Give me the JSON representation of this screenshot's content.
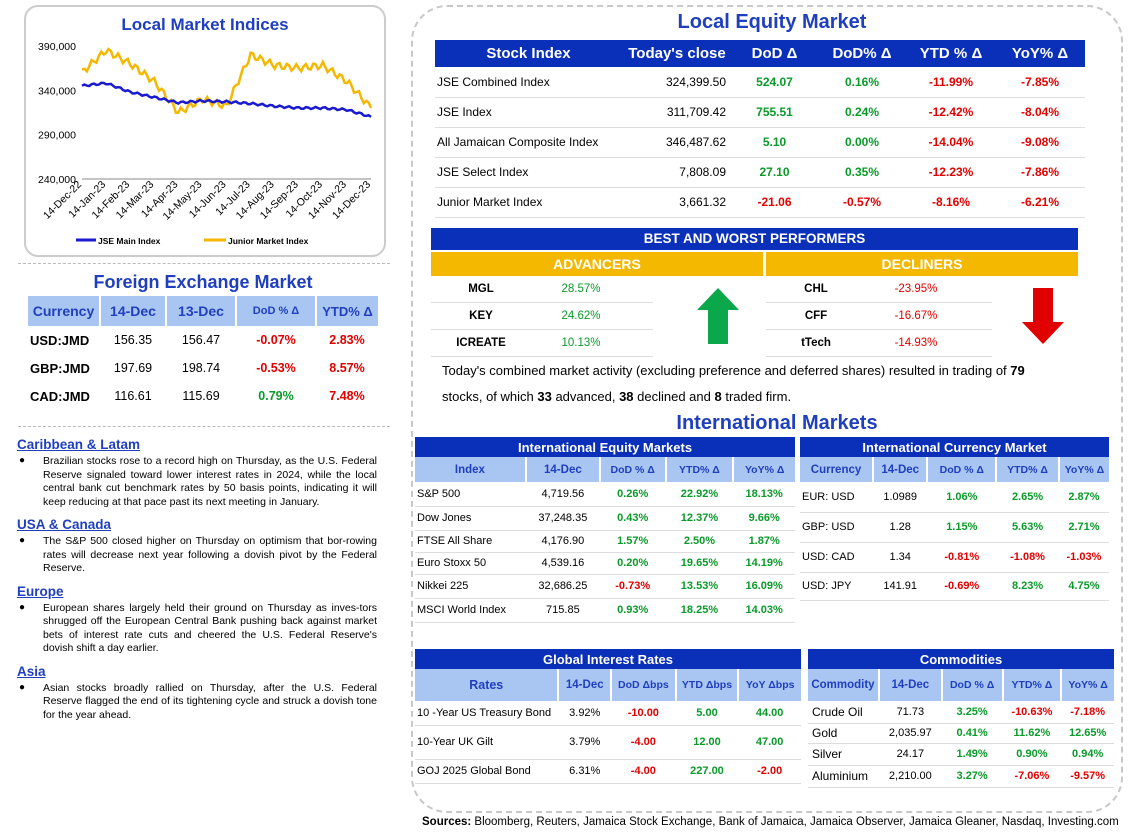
{
  "chart": {
    "title": "Local Market Indices",
    "yticks": [
      "390,000",
      "340,000",
      "290,000",
      "240,000"
    ],
    "xticks": [
      "14-Dec-22",
      "14-Jan-23",
      "14-Feb-23",
      "14-Mar-23",
      "14-Apr-23",
      "14-May-23",
      "14-Jun-23",
      "14-Jul-23",
      "14-Aug-23",
      "14-Sep-23",
      "14-Oct-23",
      "14-Nov-23",
      "14-Dec-23"
    ],
    "legend_main": "JSE Main Index",
    "legend_junior": "Junior Market Index",
    "colors": {
      "main": "#1a1ad0",
      "junior": "#F5B800"
    }
  },
  "chart_data": {
    "type": "line",
    "title": "Local Market Indices",
    "x": [
      "14-Dec-22",
      "14-Jan-23",
      "14-Feb-23",
      "14-Mar-23",
      "14-Apr-23",
      "14-May-23",
      "14-Jun-23",
      "14-Jul-23",
      "14-Aug-23",
      "14-Sep-23",
      "14-Oct-23",
      "14-Nov-23",
      "14-Dec-23"
    ],
    "ylim": [
      240000,
      400000
    ],
    "series": [
      {
        "name": "JSE Main Index",
        "values": [
          345000,
          348000,
          338000,
          332000,
          326000,
          328000,
          327000,
          325000,
          322000,
          320000,
          320000,
          318000,
          310000
        ]
      },
      {
        "name": "Junior Market Index",
        "values": [
          360000,
          385000,
          370000,
          350000,
          315000,
          330000,
          322000,
          380000,
          368000,
          365000,
          368000,
          350000,
          320000
        ]
      }
    ],
    "grid": false,
    "legend": "bottom"
  },
  "fx": {
    "title": "Foreign Exchange Market",
    "headers": [
      "Currency",
      "14-Dec",
      "13-Dec",
      "DoD % Δ",
      "YTD% Δ"
    ],
    "rows": [
      {
        "cur": "USD:JMD",
        "d1": "156.35",
        "d2": "156.47",
        "dod": "-0.07%",
        "ytd": "2.83%"
      },
      {
        "cur": "GBP:JMD",
        "d1": "197.69",
        "d2": "198.74",
        "dod": "-0.53%",
        "ytd": "8.57%"
      },
      {
        "cur": "CAD:JMD",
        "d1": "116.61",
        "d2": "115.69",
        "dod": "0.79%",
        "ytd": "7.48%"
      }
    ]
  },
  "news": [
    {
      "heading": "Caribbean & Latam",
      "text": "Brazilian stocks rose to a record high on Thursday, as the U.S. Federal Reserve signaled toward lower interest rates in 2024, while the local central bank cut benchmark rates by 50 basis points, indicating it will keep reducing at that pace past its next meeting in January."
    },
    {
      "heading": "USA & Canada",
      "text": "The S&P 500 closed higher on Thursday on optimism that bor-rowing rates will decrease next year following a dovish pivot by the Federal Reserve."
    },
    {
      "heading": "Europe",
      "text": "European shares largely held their ground on Thursday as inves-tors shrugged off the European Central Bank pushing back against market bets of interest rate cuts and cheered the U.S. Federal Reserve's dovish shift a day earlier."
    },
    {
      "heading": "Asia",
      "text": "Asian stocks broadly rallied on Thursday, after the U.S. Federal Reserve flagged the end of its tightening cycle and struck a dovish tone for the year ahead."
    }
  ],
  "equity": {
    "title": "Local Equity Market",
    "headers": [
      "Stock Index",
      "Today's close",
      "DoD  Δ",
      "DoD% Δ",
      "YTD % Δ",
      "YoY% Δ"
    ],
    "rows": [
      {
        "name": "JSE Combined Index",
        "close": "324,399.50",
        "dod": "524.07",
        "dodp": "0.16%",
        "ytd": "-11.99%",
        "yoy": "-7.85%"
      },
      {
        "name": "JSE Index",
        "close": "311,709.42",
        "dod": "755.51",
        "dodp": "0.24%",
        "ytd": "-12.42%",
        "yoy": "-8.04%"
      },
      {
        "name": "All Jamaican Composite Index",
        "close": "346,487.62",
        "dod": "5.10",
        "dodp": "0.00%",
        "ytd": "-14.04%",
        "yoy": "-9.08%"
      },
      {
        "name": "JSE Select Index",
        "close": "7,808.09",
        "dod": "27.10",
        "dodp": "0.35%",
        "ytd": "-12.23%",
        "yoy": "-7.86%"
      },
      {
        "name": "Junior Market Index",
        "close": "3,661.32",
        "dod": "-21.06",
        "dodp": "-0.57%",
        "ytd": "-8.16%",
        "yoy": "-6.21%"
      }
    ]
  },
  "performers": {
    "title": "BEST AND WORST PERFORMERS",
    "adv_label": "ADVANCERS",
    "dec_label": "DECLINERS",
    "advancers": [
      {
        "sym": "MGL",
        "pct": "28.57%"
      },
      {
        "sym": "KEY",
        "pct": "24.62%"
      },
      {
        "sym": "ICREATE",
        "pct": "10.13%"
      }
    ],
    "decliners": [
      {
        "sym": "CHL",
        "pct": "-23.95%"
      },
      {
        "sym": "CFF",
        "pct": "-16.67%"
      },
      {
        "sym": "tTech",
        "pct": "-14.93%"
      }
    ]
  },
  "summary": {
    "part1": "Today's combined market activity (excluding preference and deferred shares) resulted in trading of ",
    "n_total": "79",
    "part2": "stocks, of which ",
    "n_adv": "33",
    "part3": " advanced, ",
    "n_dec": "38",
    "part4": " declined and ",
    "n_firm": "8",
    "part5": " traded firm."
  },
  "intl": {
    "title": "International Markets",
    "equity_title": "International Equity Markets",
    "equity_headers": [
      "Index",
      "14-Dec",
      "DoD % Δ",
      "YTD% Δ",
      "YoY% Δ"
    ],
    "equity_rows": [
      {
        "name": "S&P 500",
        "v": "4,719.56",
        "dod": "0.26%",
        "ytd": "22.92%",
        "yoy": "18.13%"
      },
      {
        "name": "Dow Jones",
        "v": "37,248.35",
        "dod": "0.43%",
        "ytd": "12.37%",
        "yoy": "9.66%"
      },
      {
        "name": "FTSE All Share",
        "v": "4,176.90",
        "dod": "1.57%",
        "ytd": "2.50%",
        "yoy": "1.87%"
      },
      {
        "name": "Euro Stoxx 50",
        "v": "4,539.16",
        "dod": "0.20%",
        "ytd": "19.65%",
        "yoy": "14.19%"
      },
      {
        "name": "Nikkei 225",
        "v": "32,686.25",
        "dod": "-0.73%",
        "ytd": "13.53%",
        "yoy": "16.09%"
      },
      {
        "name": "MSCI World Index",
        "v": "715.85",
        "dod": "0.93%",
        "ytd": "18.25%",
        "yoy": "14.03%"
      }
    ],
    "currency_title": "International Currency Market",
    "currency_headers": [
      "Currency",
      "14-Dec",
      "DoD % Δ",
      "YTD% Δ",
      "YoY% Δ"
    ],
    "currency_rows": [
      {
        "name": "EUR: USD",
        "v": "1.0989",
        "dod": "1.06%",
        "ytd": "2.65%",
        "yoy": "2.87%"
      },
      {
        "name": "GBP: USD",
        "v": "1.28",
        "dod": "1.15%",
        "ytd": "5.63%",
        "yoy": "2.71%"
      },
      {
        "name": "USD: CAD",
        "v": "1.34",
        "dod": "-0.81%",
        "ytd": "-1.08%",
        "yoy": "-1.03%"
      },
      {
        "name": "USD: JPY",
        "v": "141.91",
        "dod": "-0.69%",
        "ytd": "8.23%",
        "yoy": "4.75%"
      }
    ],
    "rates_title": "Global Interest Rates",
    "rates_headers": [
      "Rates",
      "14-Dec",
      "DoD Δbps",
      "YTD Δbps",
      "YoY Δbps"
    ],
    "rates_rows": [
      {
        "name": "10 -Year US Treasury Bond",
        "v": "3.92%",
        "dod": "-10.00",
        "ytd": "5.00",
        "yoy": "44.00"
      },
      {
        "name": "10-Year UK Gilt",
        "v": "3.79%",
        "dod": "-4.00",
        "ytd": "12.00",
        "yoy": "47.00"
      },
      {
        "name": "GOJ 2025 Global Bond",
        "v": "6.31%",
        "dod": "-4.00",
        "ytd": "227.00",
        "yoy": "-2.00"
      }
    ],
    "commod_title": "Commodities",
    "commod_headers": [
      "Commodity",
      "14-Dec",
      "DoD % Δ",
      "YTD% Δ",
      "YoY% Δ"
    ],
    "commod_rows": [
      {
        "name": "Crude Oil",
        "v": "71.73",
        "dod": "3.25%",
        "ytd": "-10.63%",
        "yoy": "-7.18%"
      },
      {
        "name": "Gold",
        "v": "2,035.97",
        "dod": "0.41%",
        "ytd": "11.62%",
        "yoy": "12.65%"
      },
      {
        "name": "Silver",
        "v": "24.17",
        "dod": "1.49%",
        "ytd": "0.90%",
        "yoy": "0.94%"
      },
      {
        "name": "Aluminium",
        "v": "2,210.00",
        "dod": "3.27%",
        "ytd": "-7.06%",
        "yoy": "-9.57%"
      }
    ]
  },
  "sources": {
    "label": "Sources:",
    "text": " Bloomberg, Reuters, Jamaica Stock Exchange, Bank of Jamaica, Jamaica Observer, Jamaica Gleaner, Nasdaq, Investing.com"
  }
}
